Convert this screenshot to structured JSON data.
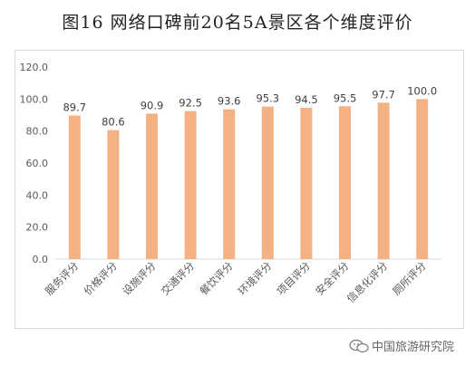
{
  "title": "图16 网络口碑前20名5A景区各个维度评价",
  "watermark": {
    "text": "中国旅游研究院",
    "icon": "wechat-icon"
  },
  "colors": {
    "bar": "#F4B183",
    "axis_text": "#595959",
    "baseline": "#d9d9d9"
  },
  "chart_data": {
    "type": "bar",
    "title": "图16 网络口碑前20名5A景区各个维度评价",
    "categories": [
      "服务评分",
      "价格评分",
      "设施评分",
      "交通评分",
      "餐饮评分",
      "环境评分",
      "项目评分",
      "安全评分",
      "信息化评分",
      "厕所评分"
    ],
    "values": [
      89.7,
      80.6,
      90.9,
      92.5,
      93.6,
      95.3,
      94.5,
      95.5,
      97.7,
      100.0
    ],
    "value_labels": [
      "89.7",
      "80.6",
      "90.9",
      "92.5",
      "93.6",
      "95.3",
      "94.5",
      "95.5",
      "97.7",
      "100.0"
    ],
    "yticks": [
      "0.0",
      "20.0",
      "40.0",
      "60.0",
      "80.0",
      "100.0",
      "120.0"
    ],
    "ylim": [
      0,
      120
    ],
    "grid": false,
    "legend": "none"
  }
}
